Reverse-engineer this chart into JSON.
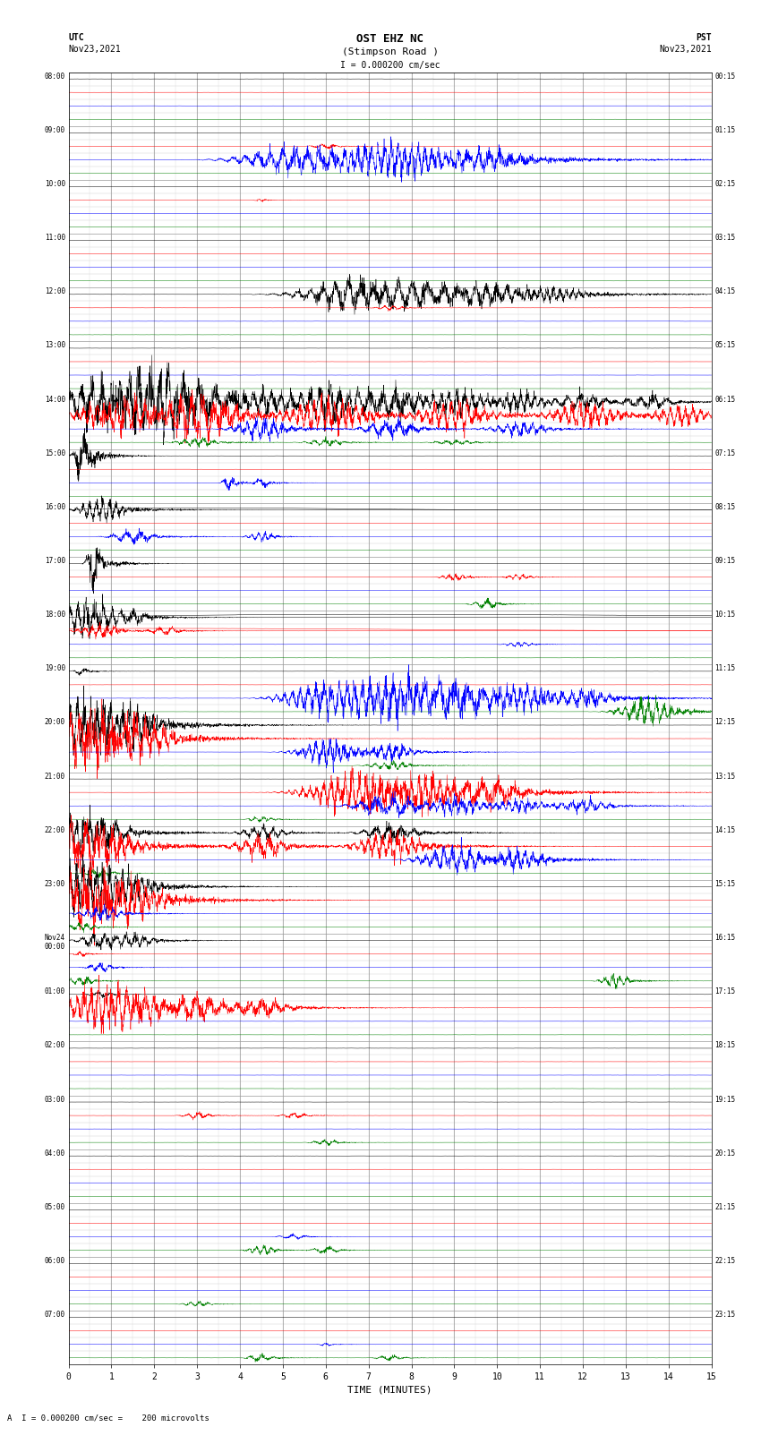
{
  "title_line1": "OST EHZ NC",
  "title_line2": "(Stimpson Road )",
  "scale_label": "I = 0.000200 cm/sec",
  "utc_label": "UTC",
  "utc_date": "Nov23,2021",
  "pst_label": "PST",
  "pst_date": "Nov23,2021",
  "bottom_label": "A  I = 0.000200 cm/sec =    200 microvolts",
  "xlabel": "TIME (MINUTES)",
  "xlim": [
    0,
    15
  ],
  "xticks": [
    0,
    1,
    2,
    3,
    4,
    5,
    6,
    7,
    8,
    9,
    10,
    11,
    12,
    13,
    14,
    15
  ],
  "bg_color": "#ffffff",
  "figsize": [
    8.5,
    16.13
  ],
  "dpi": 100,
  "utc_times": [
    "08:00",
    "09:00",
    "10:00",
    "11:00",
    "12:00",
    "13:00",
    "14:00",
    "15:00",
    "16:00",
    "17:00",
    "18:00",
    "19:00",
    "20:00",
    "21:00",
    "22:00",
    "23:00",
    "Nov24\n00:00",
    "01:00",
    "02:00",
    "03:00",
    "04:00",
    "05:00",
    "06:00",
    "07:00"
  ],
  "pst_times": [
    "00:15",
    "01:15",
    "02:15",
    "03:15",
    "04:15",
    "05:15",
    "06:15",
    "07:15",
    "08:15",
    "09:15",
    "10:15",
    "11:15",
    "12:15",
    "13:15",
    "14:15",
    "15:15",
    "16:15",
    "17:15",
    "18:15",
    "19:15",
    "20:15",
    "21:15",
    "22:15",
    "23:15"
  ]
}
